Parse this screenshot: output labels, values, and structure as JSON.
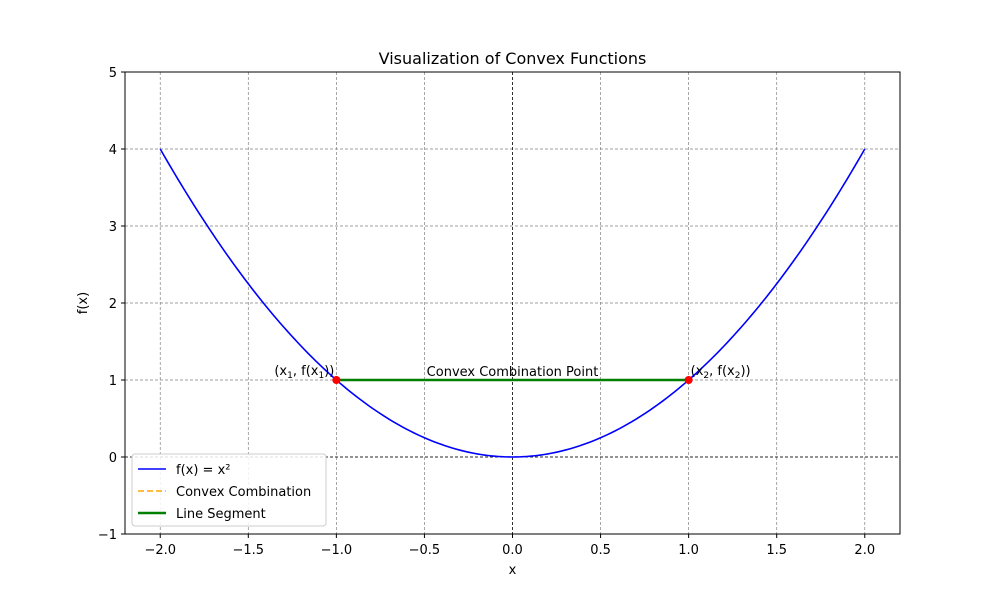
{
  "chart_data": {
    "type": "line",
    "title": "Visualization of Convex Functions",
    "xlabel": "x",
    "ylabel": "f(x)",
    "xlim": [
      -2.2,
      2.2
    ],
    "ylim": [
      -1,
      5
    ],
    "xticks": [
      -2.0,
      -1.5,
      -1.0,
      -0.5,
      0.0,
      0.5,
      1.0,
      1.5,
      2.0
    ],
    "xtick_labels": [
      "−2.0",
      "−1.5",
      "−1.0",
      "−0.5",
      "0.0",
      "0.5",
      "1.0",
      "1.5",
      "2.0"
    ],
    "yticks": [
      -1,
      0,
      1,
      2,
      3,
      4,
      5
    ],
    "ytick_labels": [
      "−1",
      "0",
      "1",
      "2",
      "3",
      "4",
      "5"
    ],
    "grid": true,
    "legend_position": "lower-left",
    "series": [
      {
        "name": "f(x) = x²",
        "kind": "function",
        "x_range": [
          -2,
          2
        ],
        "color": "#0000ff"
      },
      {
        "name": "Convex Combination",
        "kind": "dashed-line",
        "color": "#ffa500",
        "x": [
          -1,
          1
        ],
        "y": [
          1,
          1
        ]
      },
      {
        "name": "Line Segment",
        "kind": "line",
        "color": "#008000",
        "x": [
          -1,
          1
        ],
        "y": [
          1,
          1
        ]
      }
    ],
    "points": [
      {
        "x": -1,
        "y": 1,
        "color": "#ff0000",
        "label_main": "(x",
        "label_sub": "1",
        "label_mid": ", f(x",
        "label_sub2": "1",
        "label_end": "))"
      },
      {
        "x": 1,
        "y": 1,
        "color": "#ff0000",
        "label_main": "(x",
        "label_sub": "2",
        "label_mid": ", f(x",
        "label_sub2": "2",
        "label_end": "))"
      }
    ],
    "annotations": [
      {
        "text": "Convex Combination Point",
        "x": 0,
        "y": 1
      }
    ],
    "legend": [
      {
        "label": "f(x) = x²",
        "color": "#0000ff",
        "style": "solid"
      },
      {
        "label": "Convex Combination",
        "color": "#ffa500",
        "style": "dashed"
      },
      {
        "label": "Line Segment",
        "color": "#008000",
        "style": "solid-thick"
      }
    ]
  }
}
